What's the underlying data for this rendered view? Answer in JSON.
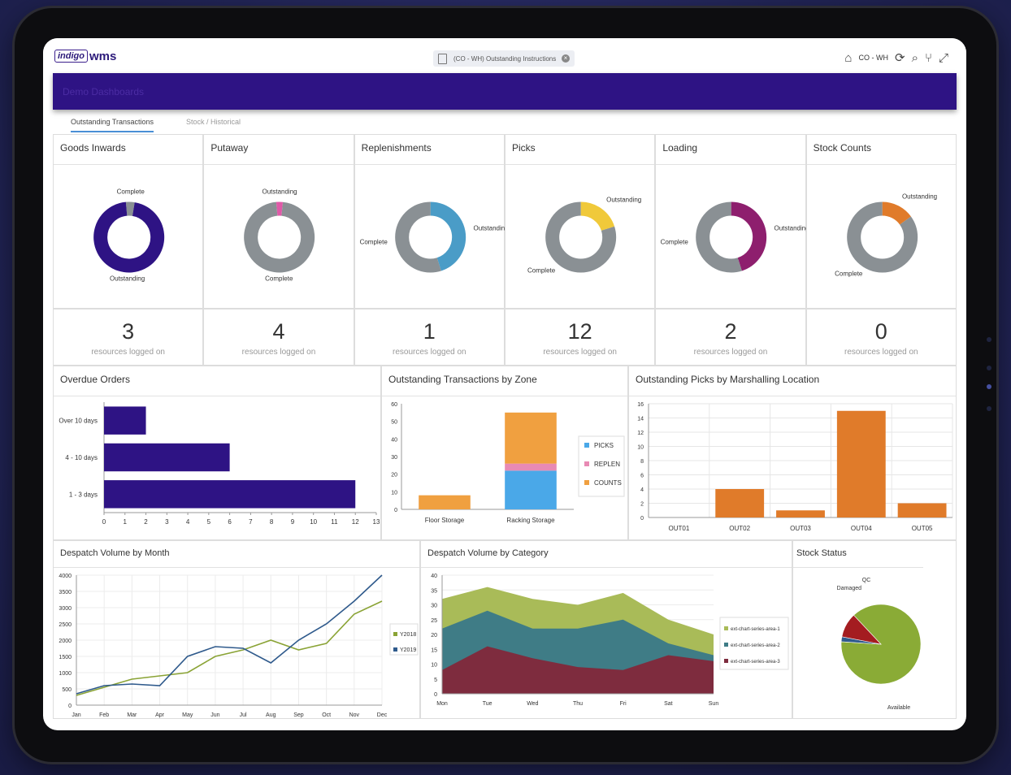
{
  "app": {
    "logo_box": "indigo",
    "logo_text": "wms",
    "doc_tab": "(CO - WH) Outstanding Instructions",
    "warehouse": "CO - WH"
  },
  "banner": {
    "title": "Demo Dashboards"
  },
  "tabs": [
    {
      "label": "Outstanding Transactions"
    },
    {
      "label": "Stock / Historical"
    }
  ],
  "colors": {
    "purple": "#2e1384",
    "grey": "#8a9094",
    "orange": "#e07b2a"
  },
  "donuts": [
    {
      "title": "Goods Inwards",
      "count": "3",
      "count_label": "resources logged on",
      "segments": [
        {
          "label": "Complete",
          "value": 4,
          "color": "#8a9094"
        },
        {
          "label": "Outstanding",
          "value": 96,
          "color": "#2e1384"
        }
      ]
    },
    {
      "title": "Putaway",
      "count": "4",
      "count_label": "resources logged on",
      "segments": [
        {
          "label": "Outstanding",
          "value": 3,
          "color": "#e05aa8"
        },
        {
          "label": "Complete",
          "value": 97,
          "color": "#8a9094"
        }
      ]
    },
    {
      "title": "Replenishments",
      "count": "1",
      "count_label": "resources logged on",
      "segments": [
        {
          "label": "Outstanding",
          "value": 45,
          "color": "#4a9cc7"
        },
        {
          "label": "Complete",
          "value": 55,
          "color": "#8a9094"
        }
      ]
    },
    {
      "title": "Picks",
      "count": "12",
      "count_label": "resources logged on",
      "segments": [
        {
          "label": "Outstanding",
          "value": 20,
          "color": "#f0c93a"
        },
        {
          "label": "Complete",
          "value": 80,
          "color": "#8a9094"
        }
      ]
    },
    {
      "title": "Loading",
      "count": "2",
      "count_label": "resources logged on",
      "segments": [
        {
          "label": "Outstanding",
          "value": 45,
          "color": "#8e1f6e"
        },
        {
          "label": "Complete",
          "value": 55,
          "color": "#8a9094"
        }
      ]
    },
    {
      "title": "Stock Counts",
      "count": "0",
      "count_label": "resources logged on",
      "segments": [
        {
          "label": "Outstanding",
          "value": 15,
          "color": "#e07b2a"
        },
        {
          "label": "Complete",
          "value": 85,
          "color": "#8a9094"
        }
      ]
    }
  ],
  "chart_data": [
    {
      "id": "overdue",
      "type": "bar",
      "orientation": "horizontal",
      "title": "Overdue Orders",
      "categories": [
        "Over 10 days",
        "4 - 10 days",
        "1 - 3 days"
      ],
      "values": [
        2,
        6,
        12
      ],
      "xlim": [
        0,
        13
      ],
      "xticks": [
        "0",
        "1",
        "2",
        "3",
        "4",
        "5",
        "6",
        "7",
        "8",
        "9",
        "10",
        "11",
        "12",
        "13"
      ],
      "color": "#2e1384"
    },
    {
      "id": "zone",
      "type": "bar",
      "stacked": true,
      "title": "Outstanding Transactions by Zone",
      "categories": [
        "Floor Storage",
        "Racking Storage"
      ],
      "series": [
        {
          "name": "PICKS",
          "values": [
            0,
            22
          ],
          "color": "#4aa8e8"
        },
        {
          "name": "REPLEN",
          "values": [
            0,
            4
          ],
          "color": "#e88ab4"
        },
        {
          "name": "COUNTS",
          "values": [
            8,
            29
          ],
          "color": "#f0a040"
        }
      ],
      "ylim": [
        0,
        60
      ],
      "yticks": [
        "0",
        "10",
        "20",
        "30",
        "40",
        "50",
        "60"
      ]
    },
    {
      "id": "marshal",
      "type": "bar",
      "title": "Outstanding Picks by Marshalling Location",
      "categories": [
        "OUT01",
        "OUT02",
        "OUT03",
        "OUT04",
        "OUT05"
      ],
      "values": [
        0,
        4,
        1,
        15,
        2
      ],
      "ylim": [
        0,
        16
      ],
      "yticks": [
        "0",
        "2",
        "4",
        "6",
        "8",
        "10",
        "12",
        "14",
        "16"
      ],
      "color": "#e07b2a"
    },
    {
      "id": "despatch_month",
      "type": "line",
      "title": "Despatch Volume by Month",
      "categories": [
        "Jan",
        "Feb",
        "Mar",
        "Apr",
        "May",
        "Jun",
        "Jul",
        "Aug",
        "Sep",
        "Oct",
        "Nov",
        "Dec"
      ],
      "series": [
        {
          "name": "Y2018",
          "values": [
            300,
            550,
            800,
            900,
            1000,
            1500,
            1700,
            2000,
            1700,
            1900,
            2800,
            3200
          ],
          "color": "#8aa335"
        },
        {
          "name": "Y2019",
          "values": [
            350,
            600,
            650,
            600,
            1500,
            1800,
            1750,
            1300,
            2000,
            2500,
            3200,
            4000
          ],
          "color": "#2f5a8c"
        }
      ],
      "ylim": [
        0,
        4000
      ],
      "yticks": [
        "0",
        "500",
        "1000",
        "1500",
        "2000",
        "2500",
        "3000",
        "3500",
        "4000"
      ]
    },
    {
      "id": "despatch_cat",
      "type": "area",
      "title": "Despatch Volume by Category",
      "categories": [
        "Mon",
        "Tue",
        "Wed",
        "Thu",
        "Fri",
        "Sat",
        "Sun"
      ],
      "series": [
        {
          "name": "ext-chart-series-area-1",
          "values": [
            32,
            36,
            32,
            30,
            34,
            25,
            20
          ],
          "color": "#a9bb58"
        },
        {
          "name": "ext-chart-series-area-2",
          "values": [
            22,
            28,
            22,
            22,
            25,
            17,
            13
          ],
          "color": "#3f7c86"
        },
        {
          "name": "ext-chart-series-area-3",
          "values": [
            8,
            16,
            12,
            9,
            8,
            13,
            11
          ],
          "color": "#7e2c3e"
        }
      ],
      "ylim": [
        0,
        40
      ],
      "yticks": [
        "0",
        "5",
        "10",
        "15",
        "20",
        "25",
        "30",
        "35",
        "40"
      ]
    },
    {
      "id": "stock_status",
      "type": "pie",
      "title": "Stock Status",
      "slices": [
        {
          "label": "Available",
          "value": 88,
          "color": "#8aab36"
        },
        {
          "label": "Damaged",
          "value": 2,
          "color": "#2f5a8c"
        },
        {
          "label": "QC",
          "value": 10,
          "color": "#a41c20"
        }
      ]
    }
  ]
}
